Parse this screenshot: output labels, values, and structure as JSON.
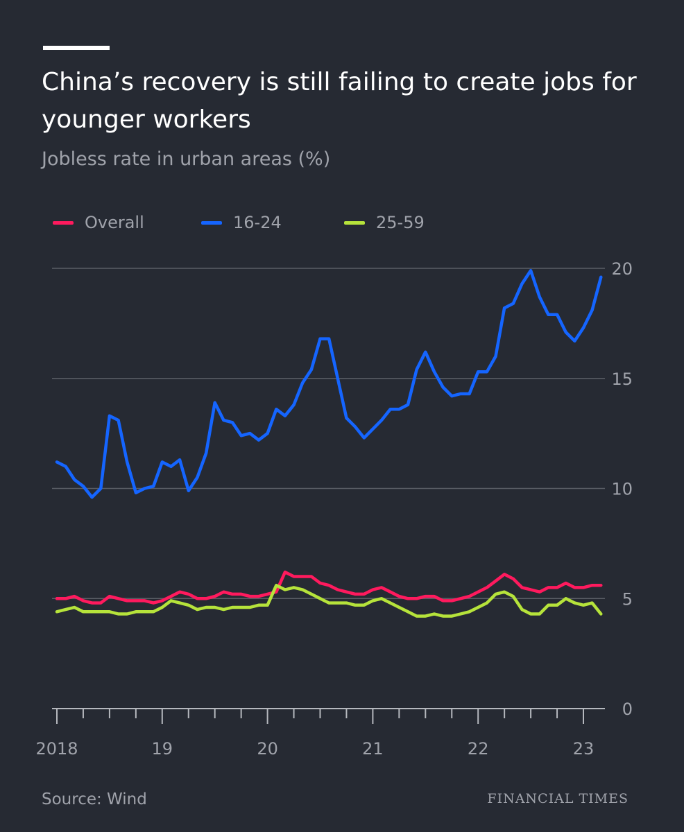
{
  "header": {
    "title": "China’s recovery is still failing to create jobs for younger workers",
    "subtitle": "Jobless rate in urban areas (%)"
  },
  "footer": {
    "source": "Source: Wind",
    "brand": "FINANCIAL TIMES"
  },
  "chart_data": {
    "type": "line",
    "title": "China’s recovery is still failing to create jobs for younger workers",
    "subtitle": "Jobless rate in urban areas (%)",
    "xlabel": "",
    "ylabel": "",
    "ylim": [
      0,
      20
    ],
    "y_ticks": [
      0,
      5,
      10,
      15,
      20
    ],
    "y_tick_labels": [
      "0",
      "5",
      "10",
      "15",
      "20"
    ],
    "x_tick_labels": [
      "2018",
      "19",
      "20",
      "21",
      "22",
      "23"
    ],
    "x_start": "2018-01",
    "x_frequency": "monthly",
    "legend_position": "top-left",
    "grid": true,
    "colors": {
      "background": "#262a33",
      "grid": "#5a5e66",
      "axis": "#b5b8be",
      "text": "#a0a3ab",
      "overall": "#ff1a5e",
      "youth": "#1565ff",
      "adult": "#b6e33b"
    },
    "series": [
      {
        "name": "Overall",
        "color": "#ff1a5e",
        "values": [
          5.0,
          5.0,
          5.1,
          4.9,
          4.8,
          4.8,
          5.1,
          5.0,
          4.9,
          4.9,
          4.9,
          4.8,
          4.9,
          5.1,
          5.3,
          5.2,
          5.0,
          5.0,
          5.1,
          5.3,
          5.2,
          5.2,
          5.1,
          5.1,
          5.2,
          5.3,
          6.2,
          6.0,
          6.0,
          6.0,
          5.7,
          5.6,
          5.4,
          5.3,
          5.2,
          5.2,
          5.4,
          5.5,
          5.3,
          5.1,
          5.0,
          5.0,
          5.1,
          5.1,
          4.9,
          4.9,
          5.0,
          5.1,
          5.3,
          5.5,
          5.8,
          6.1,
          5.9,
          5.5,
          5.4,
          5.3,
          5.5,
          5.5,
          5.7,
          5.5,
          5.5,
          5.6,
          5.6
        ]
      },
      {
        "name": "16-24",
        "color": "#1565ff",
        "values": [
          11.2,
          11.0,
          10.4,
          10.1,
          9.6,
          10.0,
          13.3,
          13.1,
          11.2,
          9.8,
          10.0,
          10.1,
          11.2,
          11.0,
          11.3,
          9.9,
          10.5,
          11.6,
          13.9,
          13.1,
          13.0,
          12.4,
          12.5,
          12.2,
          12.5,
          13.6,
          13.3,
          13.8,
          14.8,
          15.4,
          16.8,
          16.8,
          15.0,
          13.2,
          12.8,
          12.3,
          12.7,
          13.1,
          13.6,
          13.6,
          13.8,
          15.4,
          16.2,
          15.3,
          14.6,
          14.2,
          14.3,
          14.3,
          15.3,
          15.3,
          16.0,
          18.2,
          18.4,
          19.3,
          19.9,
          18.7,
          17.9,
          17.9,
          17.1,
          16.7,
          17.3,
          18.1,
          19.6
        ]
      },
      {
        "name": "25-59",
        "color": "#b6e33b",
        "values": [
          4.4,
          4.5,
          4.6,
          4.4,
          4.4,
          4.4,
          4.4,
          4.3,
          4.3,
          4.4,
          4.4,
          4.4,
          4.6,
          4.9,
          4.8,
          4.7,
          4.5,
          4.6,
          4.6,
          4.5,
          4.6,
          4.6,
          4.6,
          4.7,
          4.7,
          5.6,
          5.4,
          5.5,
          5.4,
          5.2,
          5.0,
          4.8,
          4.8,
          4.8,
          4.7,
          4.7,
          4.9,
          5.0,
          4.8,
          4.6,
          4.4,
          4.2,
          4.2,
          4.3,
          4.2,
          4.2,
          4.3,
          4.4,
          4.6,
          4.8,
          5.2,
          5.3,
          5.1,
          4.5,
          4.3,
          4.3,
          4.7,
          4.7,
          5.0,
          4.8,
          4.7,
          4.8,
          4.3
        ]
      }
    ]
  }
}
